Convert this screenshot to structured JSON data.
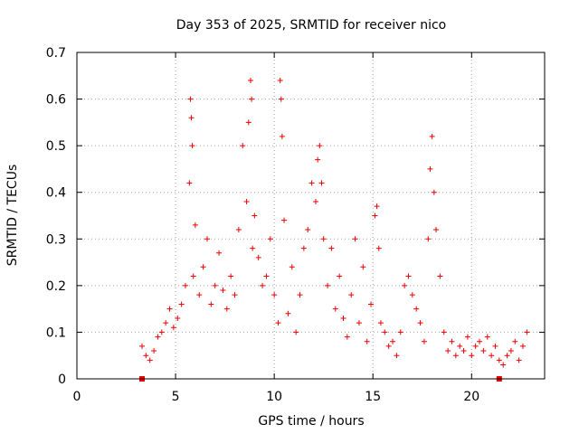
{
  "chart_data": {
    "type": "scatter",
    "title": "Day 353 of 2025, SRMTID for receiver nico",
    "xlabel": "GPS time / hours",
    "ylabel": "SRMTID / TECUs",
    "xlim": [
      0,
      23.7
    ],
    "ylim": [
      0,
      0.7
    ],
    "xticks": [
      0,
      5,
      10,
      15,
      20
    ],
    "xtick_labels": [
      "0",
      "5",
      "10",
      "15",
      "20"
    ],
    "yticks": [
      0,
      0.1,
      0.2,
      0.3,
      0.4,
      0.5,
      0.6,
      0.7
    ],
    "ytick_labels": [
      "0",
      "0.1",
      "0.2",
      "0.3",
      "0.4",
      "0.5",
      "0.6",
      "0.7"
    ],
    "grid": true,
    "marker": "+",
    "color": "#ee0000",
    "series": [
      {
        "name": "SRMTID",
        "x": [
          3.3,
          3.5,
          3.7,
          3.9,
          4.1,
          4.3,
          4.5,
          4.7,
          4.9,
          5.1,
          5.3,
          5.5,
          5.7,
          5.75,
          5.8,
          5.85,
          5.9,
          6.0,
          6.2,
          6.4,
          6.6,
          6.8,
          7.0,
          7.2,
          7.4,
          7.6,
          7.8,
          8.0,
          8.2,
          8.4,
          8.6,
          8.7,
          8.8,
          8.85,
          8.9,
          9.0,
          9.2,
          9.4,
          9.6,
          9.8,
          10.0,
          10.2,
          10.3,
          10.35,
          10.4,
          10.5,
          10.7,
          10.9,
          11.1,
          11.3,
          11.5,
          11.7,
          11.9,
          12.1,
          12.2,
          12.3,
          12.4,
          12.5,
          12.7,
          12.9,
          13.1,
          13.3,
          13.5,
          13.7,
          13.9,
          14.1,
          14.3,
          14.5,
          14.7,
          14.9,
          15.1,
          15.2,
          15.3,
          15.4,
          15.6,
          15.8,
          16.0,
          16.2,
          16.4,
          16.6,
          16.8,
          17.0,
          17.2,
          17.4,
          17.6,
          17.8,
          17.9,
          18.0,
          18.1,
          18.2,
          18.4,
          18.6,
          18.8,
          19.0,
          19.2,
          19.4,
          19.6,
          19.8,
          20.0,
          20.2,
          20.4,
          20.6,
          20.8,
          21.0,
          21.2,
          21.4,
          21.6,
          21.8,
          22.0,
          22.2,
          22.4,
          22.6,
          22.8
        ],
        "y": [
          0.07,
          0.05,
          0.04,
          0.06,
          0.09,
          0.1,
          0.12,
          0.15,
          0.11,
          0.13,
          0.16,
          0.2,
          0.42,
          0.6,
          0.56,
          0.5,
          0.22,
          0.33,
          0.18,
          0.24,
          0.3,
          0.16,
          0.2,
          0.27,
          0.19,
          0.15,
          0.22,
          0.18,
          0.32,
          0.5,
          0.38,
          0.55,
          0.64,
          0.6,
          0.28,
          0.35,
          0.26,
          0.2,
          0.22,
          0.3,
          0.18,
          0.12,
          0.64,
          0.6,
          0.52,
          0.34,
          0.14,
          0.24,
          0.1,
          0.18,
          0.28,
          0.32,
          0.42,
          0.38,
          0.47,
          0.5,
          0.42,
          0.3,
          0.2,
          0.28,
          0.15,
          0.22,
          0.13,
          0.09,
          0.18,
          0.3,
          0.12,
          0.24,
          0.08,
          0.16,
          0.35,
          0.37,
          0.28,
          0.12,
          0.1,
          0.07,
          0.08,
          0.05,
          0.1,
          0.2,
          0.22,
          0.18,
          0.15,
          0.12,
          0.08,
          0.3,
          0.45,
          0.52,
          0.4,
          0.32,
          0.22,
          0.1,
          0.06,
          0.08,
          0.05,
          0.07,
          0.06,
          0.09,
          0.05,
          0.07,
          0.08,
          0.06,
          0.09,
          0.05,
          0.07,
          0.04,
          0.03,
          0.05,
          0.06,
          0.08,
          0.04,
          0.07,
          0.1
        ]
      }
    ],
    "markers_on_axis": [
      3.3,
      21.4
    ]
  }
}
